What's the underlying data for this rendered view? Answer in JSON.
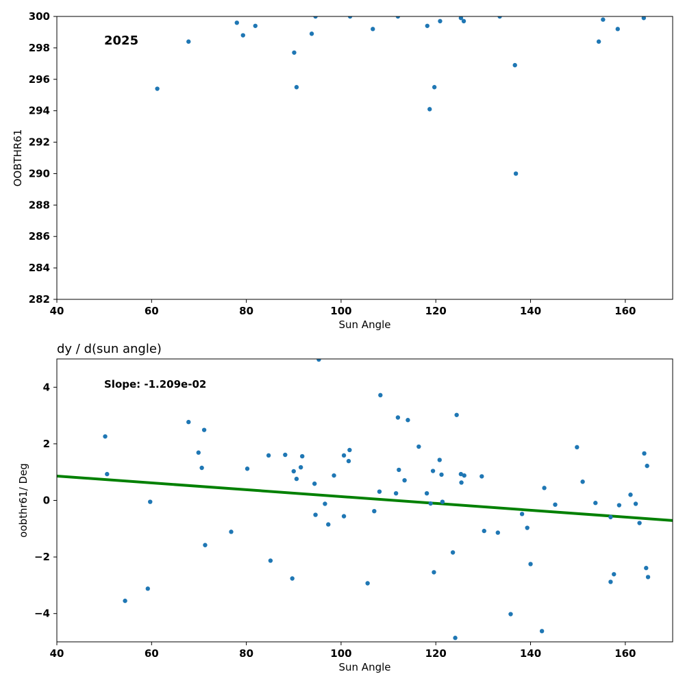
{
  "chart_data": [
    {
      "type": "scatter",
      "title": "",
      "xlabel": "Sun Angle",
      "ylabel": "OOBTHR61",
      "xlim": [
        40,
        170
      ],
      "ylim": [
        282,
        300
      ],
      "xticks": [
        40,
        60,
        80,
        100,
        120,
        140,
        160
      ],
      "xtick_labels": [
        "40",
        "60",
        "80",
        "100",
        "120",
        "140",
        "160"
      ],
      "yticks": [
        282,
        284,
        286,
        288,
        290,
        292,
        294,
        296,
        298,
        300
      ],
      "ytick_labels": [
        "282",
        "284",
        "286",
        "288",
        "290",
        "292",
        "294",
        "296",
        "298",
        "300"
      ],
      "annotation": "2025",
      "grid": false,
      "point_color": "#1f77b4",
      "points": [
        [
          61.2,
          295.4
        ],
        [
          67.8,
          298.4
        ],
        [
          78.0,
          299.6
        ],
        [
          79.3,
          298.8
        ],
        [
          81.9,
          299.4
        ],
        [
          90.1,
          297.7
        ],
        [
          90.6,
          295.5
        ],
        [
          93.8,
          298.9
        ],
        [
          94.6,
          300.0
        ],
        [
          101.9,
          300.0
        ],
        [
          106.7,
          299.2
        ],
        [
          112.0,
          300.0
        ],
        [
          118.2,
          299.4
        ],
        [
          118.7,
          294.1
        ],
        [
          119.7,
          295.5
        ],
        [
          120.9,
          299.7
        ],
        [
          125.3,
          299.9
        ],
        [
          125.9,
          299.7
        ],
        [
          133.5,
          300.0
        ],
        [
          136.7,
          296.9
        ],
        [
          136.9,
          290.0
        ],
        [
          154.4,
          298.4
        ],
        [
          155.3,
          299.8
        ],
        [
          158.4,
          299.2
        ],
        [
          163.9,
          299.9
        ]
      ]
    },
    {
      "type": "scatter",
      "title": "dy / d(sun angle)",
      "xlabel": "Sun Angle",
      "ylabel": "oobthr61/ Deg",
      "xlim": [
        40,
        170
      ],
      "ylim": [
        -5,
        5
      ],
      "xticks": [
        40,
        60,
        80,
        100,
        120,
        140,
        160
      ],
      "xtick_labels": [
        "40",
        "60",
        "80",
        "100",
        "120",
        "140",
        "160"
      ],
      "yticks": [
        -4,
        -2,
        0,
        2,
        4
      ],
      "ytick_labels": [
        "−4",
        "−2",
        "0",
        "2",
        "4"
      ],
      "annotation": "Slope: -1.209e-02",
      "grid": false,
      "point_color": "#1f77b4",
      "fit_line": {
        "color": "#008000",
        "x": [
          40,
          170
        ],
        "y": [
          0.86,
          -0.71
        ]
      },
      "points": [
        [
          50.2,
          2.26
        ],
        [
          50.6,
          0.93
        ],
        [
          54.4,
          -3.55
        ],
        [
          59.2,
          -3.12
        ],
        [
          59.7,
          -0.05
        ],
        [
          67.8,
          2.77
        ],
        [
          69.9,
          1.69
        ],
        [
          70.6,
          1.15
        ],
        [
          71.1,
          2.49
        ],
        [
          71.3,
          -1.58
        ],
        [
          76.8,
          -1.11
        ],
        [
          80.2,
          1.12
        ],
        [
          84.7,
          1.59
        ],
        [
          85.1,
          -2.13
        ],
        [
          88.2,
          1.61
        ],
        [
          89.7,
          -2.76
        ],
        [
          90.0,
          1.03
        ],
        [
          90.6,
          0.76
        ],
        [
          91.5,
          1.17
        ],
        [
          91.8,
          1.56
        ],
        [
          94.4,
          0.59
        ],
        [
          94.6,
          -0.51
        ],
        [
          95.3,
          4.98
        ],
        [
          96.6,
          -0.12
        ],
        [
          97.3,
          -0.85
        ],
        [
          98.5,
          0.88
        ],
        [
          100.6,
          1.59
        ],
        [
          100.6,
          -0.56
        ],
        [
          101.6,
          1.39
        ],
        [
          101.8,
          1.78
        ],
        [
          105.6,
          -2.93
        ],
        [
          107.0,
          -0.38
        ],
        [
          108.1,
          0.31
        ],
        [
          108.3,
          3.72
        ],
        [
          111.6,
          0.25
        ],
        [
          112.0,
          2.93
        ],
        [
          112.2,
          1.08
        ],
        [
          113.4,
          0.71
        ],
        [
          114.1,
          2.84
        ],
        [
          116.4,
          1.9
        ],
        [
          118.1,
          0.25
        ],
        [
          118.9,
          -0.11
        ],
        [
          119.4,
          1.04
        ],
        [
          119.6,
          -2.54
        ],
        [
          120.8,
          1.43
        ],
        [
          121.2,
          0.91
        ],
        [
          121.4,
          -0.05
        ],
        [
          123.6,
          -1.84
        ],
        [
          124.1,
          -4.86
        ],
        [
          124.4,
          3.02
        ],
        [
          125.3,
          0.93
        ],
        [
          125.4,
          0.63
        ],
        [
          126.0,
          0.88
        ],
        [
          129.7,
          0.85
        ],
        [
          130.2,
          -1.08
        ],
        [
          133.1,
          -1.14
        ],
        [
          135.8,
          -4.02
        ],
        [
          138.2,
          -0.48
        ],
        [
          139.3,
          -0.97
        ],
        [
          140.0,
          -2.25
        ],
        [
          142.4,
          -4.62
        ],
        [
          142.9,
          0.44
        ],
        [
          145.2,
          -0.15
        ],
        [
          149.8,
          1.88
        ],
        [
          151.0,
          0.66
        ],
        [
          153.7,
          -0.09
        ],
        [
          156.9,
          -0.59
        ],
        [
          156.9,
          -2.88
        ],
        [
          157.6,
          -2.61
        ],
        [
          158.7,
          -0.17
        ],
        [
          161.1,
          0.2
        ],
        [
          162.2,
          -0.12
        ],
        [
          163.0,
          -0.8
        ],
        [
          164.0,
          1.66
        ],
        [
          164.4,
          -2.39
        ],
        [
          164.6,
          1.22
        ],
        [
          164.8,
          -2.71
        ]
      ]
    }
  ]
}
